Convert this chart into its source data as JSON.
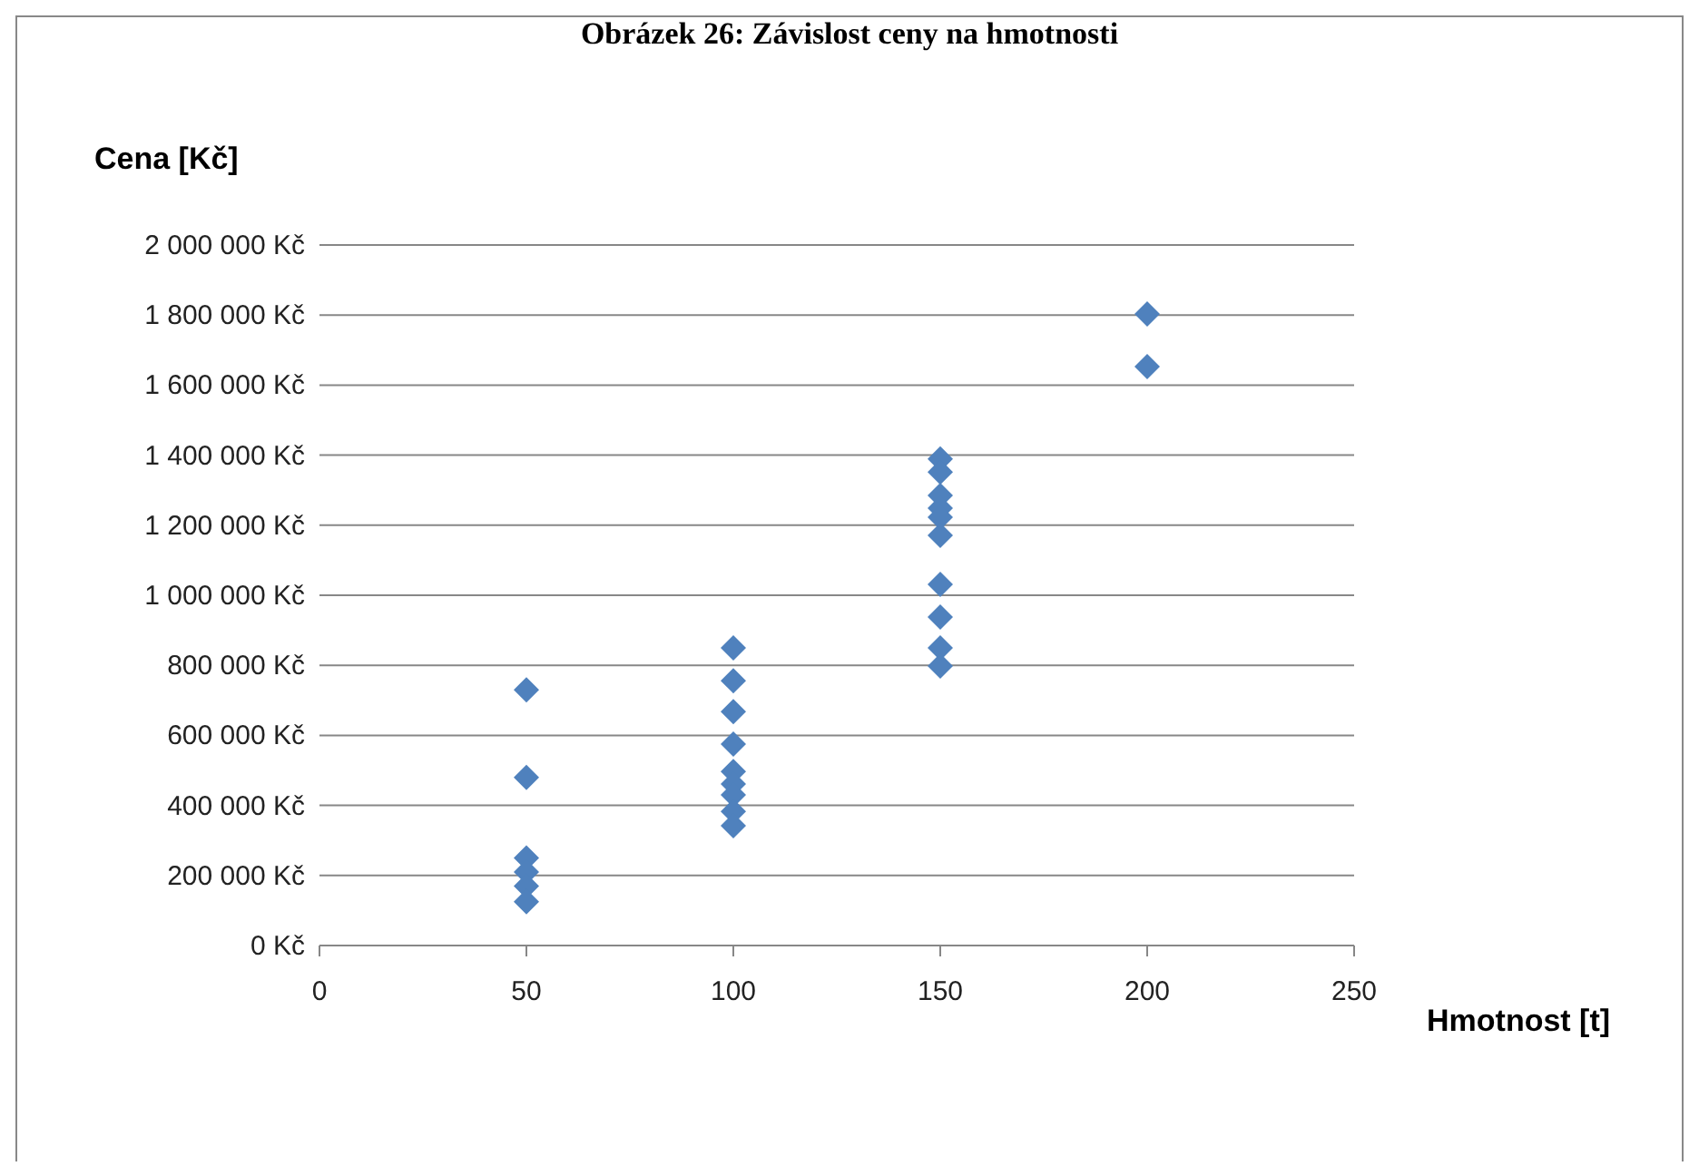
{
  "chart_data": {
    "type": "scatter",
    "title": "Obrázek 26: Závislost ceny na hmotnosti",
    "xlabel": "Hmotnost [t]",
    "ylabel": "Cena [Kč]",
    "series": [
      {
        "color": "#4f81bd",
        "x": [
          50,
          50,
          50,
          50,
          50,
          50,
          100,
          100,
          100,
          100,
          100,
          100,
          100,
          100,
          100,
          150,
          150,
          150,
          150,
          150,
          150,
          150,
          150,
          150,
          150,
          200,
          200
        ],
        "values": [
          730000,
          480000,
          250000,
          210000,
          170000,
          125000,
          850000,
          756000,
          668000,
          575000,
          497000,
          461000,
          430000,
          383000,
          342000,
          1389000,
          1352000,
          1285000,
          1249000,
          1223000,
          1171000,
          1031000,
          938000,
          850000,
          798000,
          1803000,
          1653000
        ]
      }
    ],
    "marker": "diamond",
    "grid": "y",
    "xlim": [
      0,
      250
    ],
    "xticks": [
      0,
      50,
      100,
      150,
      200,
      250
    ],
    "ylim": [
      0,
      2000000
    ],
    "yticks": [
      {
        "value": 0,
        "label": "0 Kč"
      },
      {
        "value": 200000,
        "label": "200 000 Kč"
      },
      {
        "value": 400000,
        "label": "400 000 Kč"
      },
      {
        "value": 600000,
        "label": "600 000 Kč"
      },
      {
        "value": 800000,
        "label": "800 000 Kč"
      },
      {
        "value": 1000000,
        "label": "1 000 000 Kč"
      },
      {
        "value": 1200000,
        "label": "1 200 000 Kč"
      },
      {
        "value": 1400000,
        "label": "1 400 000 Kč"
      },
      {
        "value": 1600000,
        "label": "1 600 000 Kč"
      },
      {
        "value": 1800000,
        "label": "1 800 000 Kč"
      },
      {
        "value": 2000000,
        "label": "2 000 000 Kč"
      }
    ]
  }
}
